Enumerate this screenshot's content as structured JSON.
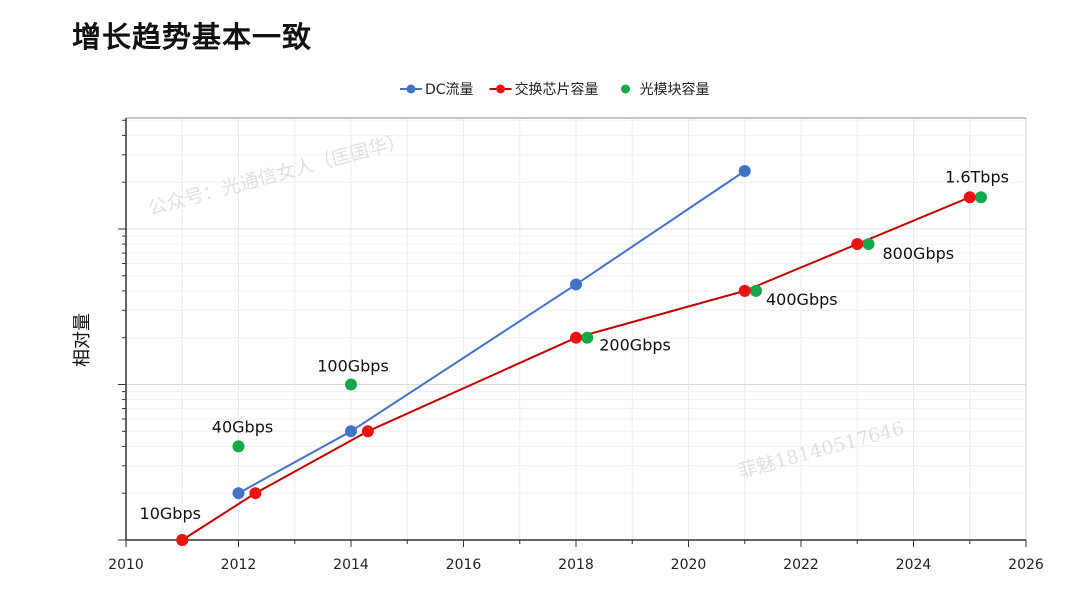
{
  "title": "增长趋势基本一致",
  "chart_data": {
    "type": "line",
    "title": "增长趋势基本一致",
    "xlabel": "",
    "ylabel": "相对量",
    "xlim": [
      2010,
      2026
    ],
    "xticks": [
      2010,
      2012,
      2014,
      2016,
      2018,
      2020,
      2022,
      2024,
      2026
    ],
    "yscale": "log",
    "ylim": [
      1,
      515
    ],
    "grid": true,
    "legend": "top-center",
    "series": [
      {
        "name": "DC流量",
        "color": "#4472c4",
        "line": true,
        "points": [
          [
            2012,
            2
          ],
          [
            2014,
            5
          ],
          [
            2018,
            44
          ],
          [
            2021,
            236
          ]
        ]
      },
      {
        "name": "交换芯片容量",
        "color": "#ee1111",
        "line_color": "#c00000",
        "line": true,
        "points": [
          [
            2011,
            1
          ],
          [
            2012.3,
            2
          ],
          [
            2014.3,
            5
          ],
          [
            2018,
            20
          ],
          [
            2021,
            40
          ],
          [
            2023,
            80
          ],
          [
            2025,
            160
          ]
        ]
      },
      {
        "name": "光模块容量",
        "color": "#14a84a",
        "line": false,
        "points": [
          [
            2011,
            1
          ],
          [
            2012,
            4
          ],
          [
            2014,
            10
          ],
          [
            2018.2,
            20
          ],
          [
            2021.2,
            40
          ],
          [
            2023.2,
            80
          ],
          [
            2025.2,
            160
          ]
        ]
      }
    ],
    "annotations": [
      {
        "text": "10Gbps",
        "x": 2011,
        "y": 1
      },
      {
        "text": "40Gbps",
        "x": 2012,
        "y": 4
      },
      {
        "text": "100Gbps",
        "x": 2014,
        "y": 10
      },
      {
        "text": "200Gbps",
        "x": 2018.2,
        "y": 20
      },
      {
        "text": "400Gbps",
        "x": 2021.2,
        "y": 40
      },
      {
        "text": "800Gbps",
        "x": 2023.2,
        "y": 80
      },
      {
        "text": "1.6Tbps",
        "x": 2025.2,
        "y": 160
      }
    ]
  },
  "watermarks": [
    "公众号：光通信女人（匡国华）",
    "菲魅18140517646"
  ]
}
